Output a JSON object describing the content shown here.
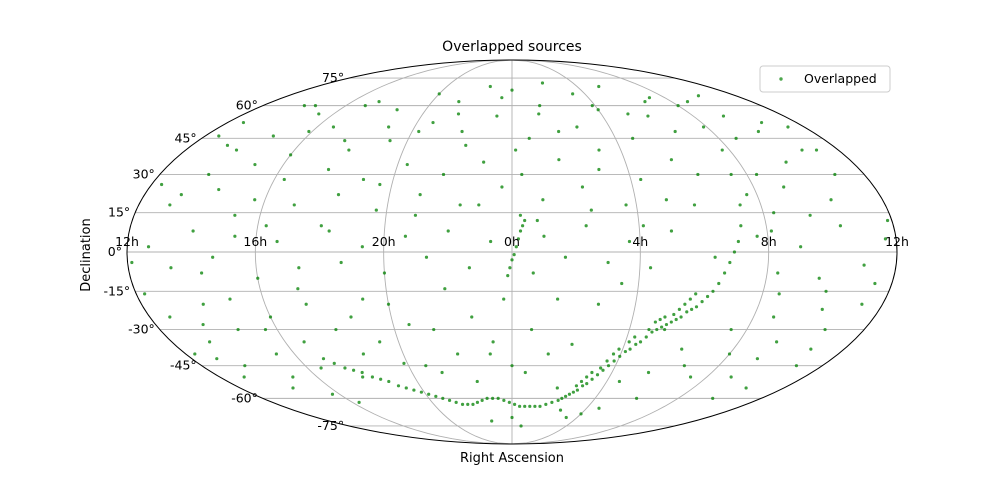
{
  "chart_data": {
    "type": "scatter",
    "projection": "mollweide",
    "title": "Overlapped sources",
    "xlabel": "Right Ascension",
    "ylabel": "Declination",
    "grid": true,
    "legend_position": "top-right",
    "ra_tick_labels": [
      "12h",
      "8h",
      "4h",
      "0h",
      "20h",
      "16h",
      "12h"
    ],
    "ra_tick_values_deg": [
      -180,
      -120,
      -60,
      0,
      60,
      120,
      180
    ],
    "dec_tick_labels": [
      "75°",
      "60°",
      "45°",
      "30°",
      "15°",
      "0°",
      "-15°",
      "-30°",
      "-45°",
      "-60°",
      "-75°"
    ],
    "dec_tick_values_deg": [
      75,
      60,
      45,
      30,
      15,
      0,
      -15,
      -30,
      -45,
      -60,
      -75
    ],
    "colors": {
      "points": "#008000",
      "grid": "#b0b0b0",
      "frame": "#000000"
    },
    "series": [
      {
        "name": "Overlapped",
        "points_lon_lat_deg": [
          [
            -120,
            60
          ],
          [
            -116,
            40
          ],
          [
            -112,
            30
          ],
          [
            -110,
            18
          ],
          [
            -108,
            10
          ],
          [
            -106,
            4
          ],
          [
            -104,
            0
          ],
          [
            -102,
            -4
          ],
          [
            -100,
            -8
          ],
          [
            -98,
            -12
          ],
          [
            -96,
            -15
          ],
          [
            -94,
            -17
          ],
          [
            -92,
            -19
          ],
          [
            -90,
            -21
          ],
          [
            -88,
            -22
          ],
          [
            -86,
            -23
          ],
          [
            -84,
            -25
          ],
          [
            -82,
            -26
          ],
          [
            -80,
            -27
          ],
          [
            -78,
            -28
          ],
          [
            -76,
            -29
          ],
          [
            -74,
            -30
          ],
          [
            -72,
            -31
          ],
          [
            -70,
            -33
          ],
          [
            -68,
            -35
          ],
          [
            -66,
            -36
          ],
          [
            -64,
            -38
          ],
          [
            -62,
            -39
          ],
          [
            -60,
            -41
          ],
          [
            -58,
            -43
          ],
          [
            -56,
            -45
          ],
          [
            -54,
            -47
          ],
          [
            -52,
            -49
          ],
          [
            -50,
            -51
          ],
          [
            -48,
            -53
          ],
          [
            -46,
            -54
          ],
          [
            -44,
            -56
          ],
          [
            -42,
            -57
          ],
          [
            -40,
            -58
          ],
          [
            -38,
            -59
          ],
          [
            -36,
            -60
          ],
          [
            -34,
            -61
          ],
          [
            -30,
            -62
          ],
          [
            -26,
            -63
          ],
          [
            -22,
            -64
          ],
          [
            -18,
            -64
          ],
          [
            -14,
            -64
          ],
          [
            -10,
            -64
          ],
          [
            -6,
            -64
          ],
          [
            -2,
            -63
          ],
          [
            2,
            -62
          ],
          [
            6,
            -61
          ],
          [
            10,
            -60
          ],
          [
            14,
            -60
          ],
          [
            18,
            -60
          ],
          [
            22,
            -61
          ],
          [
            26,
            -62
          ],
          [
            30,
            -63
          ],
          [
            34,
            -63
          ],
          [
            38,
            -63
          ],
          [
            42,
            -62
          ],
          [
            46,
            -61
          ],
          [
            50,
            -60
          ],
          [
            54,
            -59
          ],
          [
            58,
            -58
          ],
          [
            62,
            -57
          ],
          [
            66,
            -56
          ],
          [
            70,
            -55
          ],
          [
            74,
            -54
          ],
          [
            78,
            -52
          ],
          [
            82,
            -51
          ],
          [
            86,
            -50
          ],
          [
            90,
            -48
          ],
          [
            94,
            -47
          ],
          [
            98,
            -46
          ],
          [
            102,
            -44
          ],
          [
            106,
            -42
          ],
          [
            -4,
            8
          ],
          [
            -3,
            5
          ],
          [
            -2,
            2
          ],
          [
            -1,
            -1
          ],
          [
            0,
            -3
          ],
          [
            1,
            -6
          ],
          [
            2,
            -9
          ],
          [
            -5,
            10
          ],
          [
            -6,
            12
          ],
          [
            -4,
            14
          ],
          [
            -84,
            -20
          ],
          [
            -80,
            -24
          ],
          [
            -78,
            -30
          ],
          [
            -76,
            -25
          ],
          [
            -74,
            -26
          ],
          [
            -72,
            -27
          ],
          [
            -70,
            -30
          ],
          [
            -88,
            -16
          ],
          [
            -86,
            -18
          ],
          [
            -82,
            -22
          ],
          [
            -64,
            -33
          ],
          [
            -62,
            -35
          ],
          [
            -58,
            -38
          ],
          [
            -56,
            -40
          ],
          [
            -54,
            -43
          ],
          [
            -52,
            -46
          ],
          [
            -48,
            -48
          ],
          [
            -46,
            -50
          ],
          [
            -44,
            -52
          ],
          [
            -42,
            -54
          ],
          [
            -170,
            50
          ],
          [
            -160,
            40
          ],
          [
            -150,
            65
          ],
          [
            -140,
            55
          ],
          [
            -130,
            45
          ],
          [
            -125,
            30
          ],
          [
            -118,
            50
          ],
          [
            -100,
            62
          ],
          [
            -90,
            55
          ],
          [
            -80,
            70
          ],
          [
            -70,
            45
          ],
          [
            -60,
            58
          ],
          [
            -50,
            66
          ],
          [
            -40,
            50
          ],
          [
            -30,
            72
          ],
          [
            -20,
            60
          ],
          [
            -10,
            45
          ],
          [
            0,
            68
          ],
          [
            10,
            55
          ],
          [
            20,
            70
          ],
          [
            30,
            48
          ],
          [
            40,
            62
          ],
          [
            50,
            52
          ],
          [
            60,
            66
          ],
          [
            70,
            44
          ],
          [
            80,
            58
          ],
          [
            90,
            40
          ],
          [
            100,
            62
          ],
          [
            110,
            50
          ],
          [
            120,
            38
          ],
          [
            130,
            56
          ],
          [
            140,
            46
          ],
          [
            150,
            60
          ],
          [
            160,
            42
          ],
          [
            170,
            52
          ],
          [
            -165,
            30
          ],
          [
            -155,
            20
          ],
          [
            -145,
            35
          ],
          [
            -135,
            25
          ],
          [
            -125,
            15
          ],
          [
            -115,
            22
          ],
          [
            -95,
            30
          ],
          [
            -85,
            36
          ],
          [
            -75,
            20
          ],
          [
            -65,
            28
          ],
          [
            -55,
            18
          ],
          [
            -45,
            32
          ],
          [
            -35,
            25
          ],
          [
            -25,
            36
          ],
          [
            -15,
            20
          ],
          [
            -5,
            30
          ],
          [
            5,
            25
          ],
          [
            15,
            35
          ],
          [
            25,
            18
          ],
          [
            35,
            30
          ],
          [
            45,
            22
          ],
          [
            55,
            34
          ],
          [
            65,
            16
          ],
          [
            75,
            28
          ],
          [
            85,
            22
          ],
          [
            95,
            32
          ],
          [
            105,
            18
          ],
          [
            115,
            28
          ],
          [
            125,
            20
          ],
          [
            135,
            34
          ],
          [
            145,
            24
          ],
          [
            155,
            30
          ],
          [
            165,
            18
          ],
          [
            175,
            26
          ],
          [
            -175,
            5
          ],
          [
            -165,
            -5
          ],
          [
            -155,
            10
          ],
          [
            -145,
            -10
          ],
          [
            -135,
            2
          ],
          [
            -125,
            -8
          ],
          [
            -115,
            6
          ],
          [
            -95,
            -2
          ],
          [
            -75,
            8
          ],
          [
            -65,
            -6
          ],
          [
            -55,
            4
          ],
          [
            -45,
            -4
          ],
          [
            -35,
            10
          ],
          [
            -25,
            -2
          ],
          [
            -15,
            6
          ],
          [
            -10,
            -8
          ],
          [
            10,
            4
          ],
          [
            20,
            -6
          ],
          [
            30,
            8
          ],
          [
            40,
            -2
          ],
          [
            50,
            6
          ],
          [
            60,
            -8
          ],
          [
            70,
            2
          ],
          [
            80,
            -4
          ],
          [
            90,
            10
          ],
          [
            100,
            -6
          ],
          [
            110,
            4
          ],
          [
            120,
            -10
          ],
          [
            130,
            6
          ],
          [
            140,
            -2
          ],
          [
            150,
            8
          ],
          [
            160,
            -6
          ],
          [
            170,
            2
          ],
          [
            178,
            -4
          ],
          [
            -170,
            -20
          ],
          [
            -160,
            -30
          ],
          [
            -150,
            -15
          ],
          [
            -140,
            -35
          ],
          [
            -130,
            -25
          ],
          [
            -120,
            -40
          ],
          [
            -110,
            -50
          ],
          [
            -100,
            -45
          ],
          [
            -90,
            -60
          ],
          [
            -70,
            -65
          ],
          [
            -50,
            -70
          ],
          [
            -30,
            -55
          ],
          [
            -20,
            -40
          ],
          [
            -10,
            -30
          ],
          [
            0,
            -45
          ],
          [
            10,
            -35
          ],
          [
            20,
            -25
          ],
          [
            30,
            -40
          ],
          [
            40,
            -30
          ],
          [
            50,
            -45
          ],
          [
            60,
            -20
          ],
          [
            70,
            -35
          ],
          [
            80,
            -25
          ],
          [
            90,
            -30
          ],
          [
            100,
            -20
          ],
          [
            110,
            -35
          ],
          [
            120,
            -25
          ],
          [
            130,
            -40
          ],
          [
            140,
            -30
          ],
          [
            150,
            -20
          ],
          [
            160,
            -35
          ],
          [
            170,
            -25
          ],
          [
            -165,
            -45
          ],
          [
            -155,
            -55
          ],
          [
            -145,
            -60
          ],
          [
            -135,
            -50
          ],
          [
            175,
            -40
          ],
          [
            165,
            -50
          ],
          [
            155,
            -45
          ],
          [
            145,
            -55
          ],
          [
            135,
            -50
          ],
          [
            125,
            -58
          ],
          [
            115,
            -62
          ],
          [
            20,
            -72
          ],
          [
            -10,
            -75
          ],
          [
            0,
            -70
          ],
          [
            -40,
            -66
          ],
          [
            -60,
            -68
          ],
          [
            -178,
            12
          ],
          [
            -172,
            -12
          ],
          [
            -168,
            40
          ],
          [
            -162,
            -38
          ],
          [
            -158,
            52
          ],
          [
            -152,
            -22
          ],
          [
            -148,
            48
          ],
          [
            -142,
            14
          ],
          [
            -138,
            -42
          ],
          [
            -132,
            62
          ],
          [
            -128,
            -16
          ],
          [
            -122,
            8
          ],
          [
            -112,
            -30
          ],
          [
            -108,
            64
          ],
          [
            -98,
            48
          ],
          [
            -92,
            -38
          ],
          [
            -88,
            18
          ],
          [
            -82,
            -48
          ],
          [
            -78,
            56
          ],
          [
            -68,
            -52
          ],
          [
            -62,
            10
          ],
          [
            -58,
            60
          ],
          [
            -52,
            -12
          ],
          [
            -48,
            40
          ],
          [
            -42,
            -20
          ],
          [
            -38,
            16
          ],
          [
            -32,
            -36
          ],
          [
            -28,
            48
          ],
          [
            -22,
            -18
          ],
          [
            -18,
            56
          ],
          [
            -12,
            12
          ],
          [
            -8,
            -48
          ],
          [
            -2,
            40
          ],
          [
            4,
            -18
          ],
          [
            8,
            64
          ],
          [
            12,
            -40
          ],
          [
            16,
            18
          ],
          [
            22,
            -52
          ],
          [
            26,
            42
          ],
          [
            32,
            -14
          ],
          [
            36,
            56
          ],
          [
            42,
            -48
          ],
          [
            46,
            14
          ],
          [
            52,
            -28
          ],
          [
            56,
            48
          ],
          [
            62,
            -44
          ],
          [
            66,
            26
          ],
          [
            72,
            -18
          ],
          [
            76,
            50
          ],
          [
            82,
            -40
          ],
          [
            86,
            8
          ],
          [
            92,
            -50
          ],
          [
            96,
            44
          ],
          [
            102,
            -14
          ],
          [
            106,
            60
          ],
          [
            112,
            -46
          ],
          [
            116,
            10
          ],
          [
            122,
            48
          ],
          [
            126,
            -30
          ],
          [
            132,
            14
          ],
          [
            136,
            -18
          ],
          [
            142,
            60
          ],
          [
            146,
            -8
          ],
          [
            152,
            40
          ],
          [
            156,
            -28
          ],
          [
            162,
            22
          ],
          [
            166,
            -42
          ],
          [
            172,
            46
          ],
          [
            176,
            -16
          ]
        ]
      }
    ]
  }
}
